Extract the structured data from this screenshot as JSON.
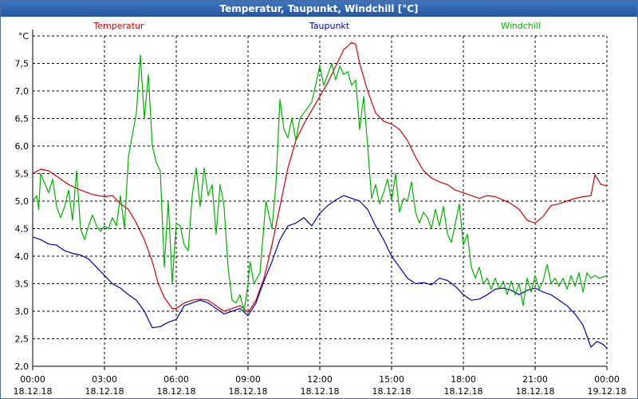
{
  "window": {
    "title": "Temperatur, Taupunkt, Windchill [°C]"
  },
  "colors": {
    "temperatur": "#d00000",
    "taupunkt": "#0000b0",
    "windchill": "#00b000",
    "grid": "#000000",
    "titlebar": "#2f63ad"
  },
  "chart_data": {
    "type": "line",
    "title": "Temperatur, Taupunkt, Windchill [°C]",
    "ylabel": "°C",
    "xlabel": "",
    "ylim": [
      2.0,
      8.0
    ],
    "xlim": [
      "18.12.18 00:00",
      "19.12.18 00:00"
    ],
    "grid": true,
    "legend_position": "top",
    "y_ticks": [
      "2,0",
      "2,5",
      "3,0",
      "3,5",
      "4,0",
      "4,5",
      "5,0",
      "5,5",
      "6,0",
      "6,5",
      "7,0",
      "7,5"
    ],
    "x_ticks": [
      {
        "time": "00:00",
        "date": "18.12.18"
      },
      {
        "time": "03:00",
        "date": "18.12.18"
      },
      {
        "time": "06:00",
        "date": "18.12.18"
      },
      {
        "time": "09:00",
        "date": "18.12.18"
      },
      {
        "time": "12:00",
        "date": "18.12.18"
      },
      {
        "time": "15:00",
        "date": "18.12.18"
      },
      {
        "time": "18:00",
        "date": "18.12.18"
      },
      {
        "time": "21:00",
        "date": "18.12.18"
      },
      {
        "time": "00:00",
        "date": "19.12.18"
      }
    ],
    "series": [
      {
        "name": "Temperatur",
        "color": "#d00000",
        "points": [
          [
            "00:00",
            5.5
          ],
          [
            "00:20",
            5.58
          ],
          [
            "00:40",
            5.55
          ],
          [
            "01:00",
            5.45
          ],
          [
            "01:30",
            5.3
          ],
          [
            "02:00",
            5.2
          ],
          [
            "02:30",
            5.12
          ],
          [
            "03:00",
            5.08
          ],
          [
            "03:20",
            5.1
          ],
          [
            "03:40",
            4.95
          ],
          [
            "04:00",
            4.85
          ],
          [
            "04:20",
            4.6
          ],
          [
            "04:40",
            4.3
          ],
          [
            "05:00",
            3.9
          ],
          [
            "05:15",
            3.5
          ],
          [
            "05:30",
            3.25
          ],
          [
            "05:50",
            3.05
          ],
          [
            "06:00",
            3.05
          ],
          [
            "06:20",
            3.15
          ],
          [
            "06:40",
            3.2
          ],
          [
            "07:00",
            3.22
          ],
          [
            "07:20",
            3.2
          ],
          [
            "07:40",
            3.1
          ],
          [
            "08:00",
            3.0
          ],
          [
            "08:20",
            3.05
          ],
          [
            "08:40",
            3.1
          ],
          [
            "09:00",
            2.98
          ],
          [
            "09:20",
            3.2
          ],
          [
            "09:40",
            3.6
          ],
          [
            "10:00",
            4.2
          ],
          [
            "10:20",
            4.9
          ],
          [
            "10:40",
            5.6
          ],
          [
            "11:00",
            6.1
          ],
          [
            "11:20",
            6.4
          ],
          [
            "11:40",
            6.65
          ],
          [
            "12:00",
            6.9
          ],
          [
            "12:20",
            7.15
          ],
          [
            "12:40",
            7.45
          ],
          [
            "13:00",
            7.75
          ],
          [
            "13:20",
            7.88
          ],
          [
            "13:30",
            7.85
          ],
          [
            "13:40",
            7.5
          ],
          [
            "14:00",
            7.0
          ],
          [
            "14:20",
            6.6
          ],
          [
            "14:40",
            6.45
          ],
          [
            "15:00",
            6.4
          ],
          [
            "15:20",
            6.3
          ],
          [
            "15:40",
            6.1
          ],
          [
            "16:00",
            5.8
          ],
          [
            "16:20",
            5.55
          ],
          [
            "16:40",
            5.42
          ],
          [
            "17:00",
            5.35
          ],
          [
            "17:20",
            5.3
          ],
          [
            "17:40",
            5.2
          ],
          [
            "18:00",
            5.15
          ],
          [
            "18:20",
            5.1
          ],
          [
            "18:40",
            5.05
          ],
          [
            "19:00",
            5.1
          ],
          [
            "19:20",
            5.08
          ],
          [
            "19:40",
            5.02
          ],
          [
            "20:00",
            4.95
          ],
          [
            "20:20",
            4.85
          ],
          [
            "20:40",
            4.65
          ],
          [
            "21:00",
            4.6
          ],
          [
            "21:20",
            4.72
          ],
          [
            "21:40",
            4.92
          ],
          [
            "22:00",
            4.95
          ],
          [
            "22:20",
            5.0
          ],
          [
            "22:40",
            5.05
          ],
          [
            "23:00",
            5.08
          ],
          [
            "23:20",
            5.1
          ],
          [
            "23:30",
            5.48
          ],
          [
            "23:45",
            5.3
          ],
          [
            "24:00",
            5.28
          ]
        ]
      },
      {
        "name": "Taupunkt",
        "color": "#0000b0",
        "points": [
          [
            "00:00",
            4.35
          ],
          [
            "00:20",
            4.3
          ],
          [
            "00:40",
            4.22
          ],
          [
            "01:00",
            4.2
          ],
          [
            "01:20",
            4.1
          ],
          [
            "01:40",
            4.05
          ],
          [
            "02:00",
            4.02
          ],
          [
            "02:20",
            3.95
          ],
          [
            "02:40",
            3.8
          ],
          [
            "03:00",
            3.65
          ],
          [
            "03:20",
            3.5
          ],
          [
            "03:40",
            3.42
          ],
          [
            "04:00",
            3.3
          ],
          [
            "04:20",
            3.2
          ],
          [
            "04:40",
            3.0
          ],
          [
            "05:00",
            2.7
          ],
          [
            "05:20",
            2.72
          ],
          [
            "05:40",
            2.8
          ],
          [
            "06:00",
            2.85
          ],
          [
            "06:20",
            3.1
          ],
          [
            "06:40",
            3.15
          ],
          [
            "07:00",
            3.2
          ],
          [
            "07:20",
            3.15
          ],
          [
            "07:40",
            3.05
          ],
          [
            "08:00",
            2.95
          ],
          [
            "08:20",
            3.0
          ],
          [
            "08:40",
            3.05
          ],
          [
            "09:00",
            2.92
          ],
          [
            "09:20",
            3.15
          ],
          [
            "09:40",
            3.55
          ],
          [
            "10:00",
            3.9
          ],
          [
            "10:20",
            4.3
          ],
          [
            "10:40",
            4.55
          ],
          [
            "11:00",
            4.6
          ],
          [
            "11:20",
            4.7
          ],
          [
            "11:40",
            4.55
          ],
          [
            "12:00",
            4.78
          ],
          [
            "12:20",
            4.92
          ],
          [
            "12:40",
            5.02
          ],
          [
            "13:00",
            5.1
          ],
          [
            "13:20",
            5.05
          ],
          [
            "13:40",
            5.0
          ],
          [
            "14:00",
            4.85
          ],
          [
            "14:20",
            4.55
          ],
          [
            "14:40",
            4.3
          ],
          [
            "15:00",
            4.0
          ],
          [
            "15:20",
            3.8
          ],
          [
            "15:40",
            3.6
          ],
          [
            "16:00",
            3.5
          ],
          [
            "16:20",
            3.52
          ],
          [
            "16:40",
            3.48
          ],
          [
            "17:00",
            3.6
          ],
          [
            "17:20",
            3.56
          ],
          [
            "17:40",
            3.45
          ],
          [
            "18:00",
            3.3
          ],
          [
            "18:20",
            3.2
          ],
          [
            "18:40",
            3.22
          ],
          [
            "19:00",
            3.3
          ],
          [
            "19:20",
            3.4
          ],
          [
            "19:40",
            3.42
          ],
          [
            "20:00",
            3.38
          ],
          [
            "20:20",
            3.3
          ],
          [
            "20:40",
            3.38
          ],
          [
            "21:00",
            3.42
          ],
          [
            "21:20",
            3.35
          ],
          [
            "21:40",
            3.3
          ],
          [
            "22:00",
            3.2
          ],
          [
            "22:20",
            3.1
          ],
          [
            "22:40",
            2.95
          ],
          [
            "23:00",
            2.75
          ],
          [
            "23:10",
            2.55
          ],
          [
            "23:20",
            2.35
          ],
          [
            "23:35",
            2.45
          ],
          [
            "23:50",
            2.4
          ],
          [
            "24:00",
            2.33
          ]
        ]
      },
      {
        "name": "Windchill",
        "color": "#00b000",
        "points": [
          [
            "00:00",
            5.0
          ],
          [
            "00:10",
            5.1
          ],
          [
            "00:15",
            4.85
          ],
          [
            "00:20",
            5.5
          ],
          [
            "00:40",
            5.15
          ],
          [
            "00:50",
            5.4
          ],
          [
            "01:00",
            4.9
          ],
          [
            "01:10",
            4.7
          ],
          [
            "01:20",
            4.9
          ],
          [
            "01:30",
            5.2
          ],
          [
            "01:40",
            4.65
          ],
          [
            "01:50",
            5.55
          ],
          [
            "02:00",
            4.5
          ],
          [
            "02:10",
            4.3
          ],
          [
            "02:20",
            4.55
          ],
          [
            "02:30",
            4.75
          ],
          [
            "02:40",
            4.55
          ],
          [
            "02:50",
            4.45
          ],
          [
            "03:00",
            4.55
          ],
          [
            "03:10",
            4.5
          ],
          [
            "03:20",
            4.7
          ],
          [
            "03:30",
            4.55
          ],
          [
            "03:40",
            5.1
          ],
          [
            "03:50",
            4.5
          ],
          [
            "04:00",
            5.8
          ],
          [
            "04:10",
            6.2
          ],
          [
            "04:20",
            6.6
          ],
          [
            "04:30",
            7.65
          ],
          [
            "04:40",
            6.5
          ],
          [
            "04:50",
            7.3
          ],
          [
            "05:00",
            6.0
          ],
          [
            "05:10",
            5.7
          ],
          [
            "05:20",
            5.55
          ],
          [
            "05:30",
            3.8
          ],
          [
            "05:40",
            5.0
          ],
          [
            "05:50",
            3.5
          ],
          [
            "06:00",
            4.6
          ],
          [
            "06:10",
            4.55
          ],
          [
            "06:20",
            4.2
          ],
          [
            "06:30",
            4.1
          ],
          [
            "06:40",
            5.1
          ],
          [
            "06:50",
            5.6
          ],
          [
            "07:00",
            4.9
          ],
          [
            "07:10",
            5.6
          ],
          [
            "07:20",
            5.1
          ],
          [
            "07:30",
            5.3
          ],
          [
            "07:40",
            4.4
          ],
          [
            "07:50",
            5.3
          ],
          [
            "08:00",
            4.9
          ],
          [
            "08:10",
            3.8
          ],
          [
            "08:20",
            3.2
          ],
          [
            "08:30",
            3.15
          ],
          [
            "08:40",
            3.3
          ],
          [
            "08:50",
            3.0
          ],
          [
            "09:00",
            3.5
          ],
          [
            "09:05",
            3.9
          ],
          [
            "09:15",
            3.5
          ],
          [
            "09:30",
            3.7
          ],
          [
            "09:45",
            5.0
          ],
          [
            "10:00",
            4.5
          ],
          [
            "10:10",
            5.3
          ],
          [
            "10:20",
            6.85
          ],
          [
            "10:30",
            6.3
          ],
          [
            "10:40",
            6.15
          ],
          [
            "10:50",
            6.5
          ],
          [
            "11:00",
            6.1
          ],
          [
            "11:10",
            6.5
          ],
          [
            "11:20",
            6.6
          ],
          [
            "11:40",
            6.8
          ],
          [
            "12:00",
            7.45
          ],
          [
            "12:10",
            7.1
          ],
          [
            "12:20",
            7.3
          ],
          [
            "12:30",
            7.5
          ],
          [
            "12:40",
            7.2
          ],
          [
            "12:50",
            7.45
          ],
          [
            "13:00",
            7.3
          ],
          [
            "13:10",
            7.35
          ],
          [
            "13:20",
            7.1
          ],
          [
            "13:30",
            7.2
          ],
          [
            "13:40",
            6.3
          ],
          [
            "13:50",
            6.9
          ],
          [
            "14:00",
            6.0
          ],
          [
            "14:10",
            5.05
          ],
          [
            "14:20",
            5.3
          ],
          [
            "14:30",
            4.95
          ],
          [
            "14:40",
            5.15
          ],
          [
            "14:50",
            5.4
          ],
          [
            "15:00",
            5.0
          ],
          [
            "15:10",
            5.5
          ],
          [
            "15:20",
            4.8
          ],
          [
            "15:30",
            5.05
          ],
          [
            "15:40",
            5.0
          ],
          [
            "15:50",
            5.35
          ],
          [
            "16:00",
            4.8
          ],
          [
            "16:10",
            4.6
          ],
          [
            "16:20",
            4.8
          ],
          [
            "16:30",
            4.7
          ],
          [
            "16:40",
            4.5
          ],
          [
            "16:50",
            4.85
          ],
          [
            "17:00",
            4.55
          ],
          [
            "17:10",
            4.9
          ],
          [
            "17:20",
            4.4
          ],
          [
            "17:30",
            4.25
          ],
          [
            "17:40",
            4.6
          ],
          [
            "17:50",
            4.95
          ],
          [
            "18:00",
            4.2
          ],
          [
            "18:10",
            4.4
          ],
          [
            "18:20",
            3.8
          ],
          [
            "18:30",
            3.6
          ],
          [
            "18:40",
            3.8
          ],
          [
            "18:50",
            3.5
          ],
          [
            "19:00",
            3.6
          ],
          [
            "19:10",
            3.4
          ],
          [
            "19:20",
            3.6
          ],
          [
            "19:30",
            3.4
          ],
          [
            "19:40",
            3.55
          ],
          [
            "19:50",
            3.3
          ],
          [
            "20:00",
            3.55
          ],
          [
            "20:10",
            3.3
          ],
          [
            "20:20",
            3.5
          ],
          [
            "20:30",
            3.1
          ],
          [
            "20:40",
            3.6
          ],
          [
            "20:50",
            3.35
          ],
          [
            "21:00",
            3.65
          ],
          [
            "21:10",
            3.4
          ],
          [
            "21:20",
            3.55
          ],
          [
            "21:30",
            3.85
          ],
          [
            "21:40",
            3.5
          ],
          [
            "21:50",
            3.6
          ],
          [
            "22:00",
            3.45
          ],
          [
            "22:10",
            3.6
          ],
          [
            "22:20",
            3.4
          ],
          [
            "22:30",
            3.65
          ],
          [
            "22:40",
            3.45
          ],
          [
            "22:50",
            3.7
          ],
          [
            "23:00",
            3.35
          ],
          [
            "23:10",
            3.7
          ],
          [
            "23:20",
            3.6
          ],
          [
            "23:30",
            3.65
          ],
          [
            "23:40",
            3.6
          ],
          [
            "23:50",
            3.62
          ],
          [
            "24:00",
            3.65
          ]
        ]
      }
    ]
  }
}
